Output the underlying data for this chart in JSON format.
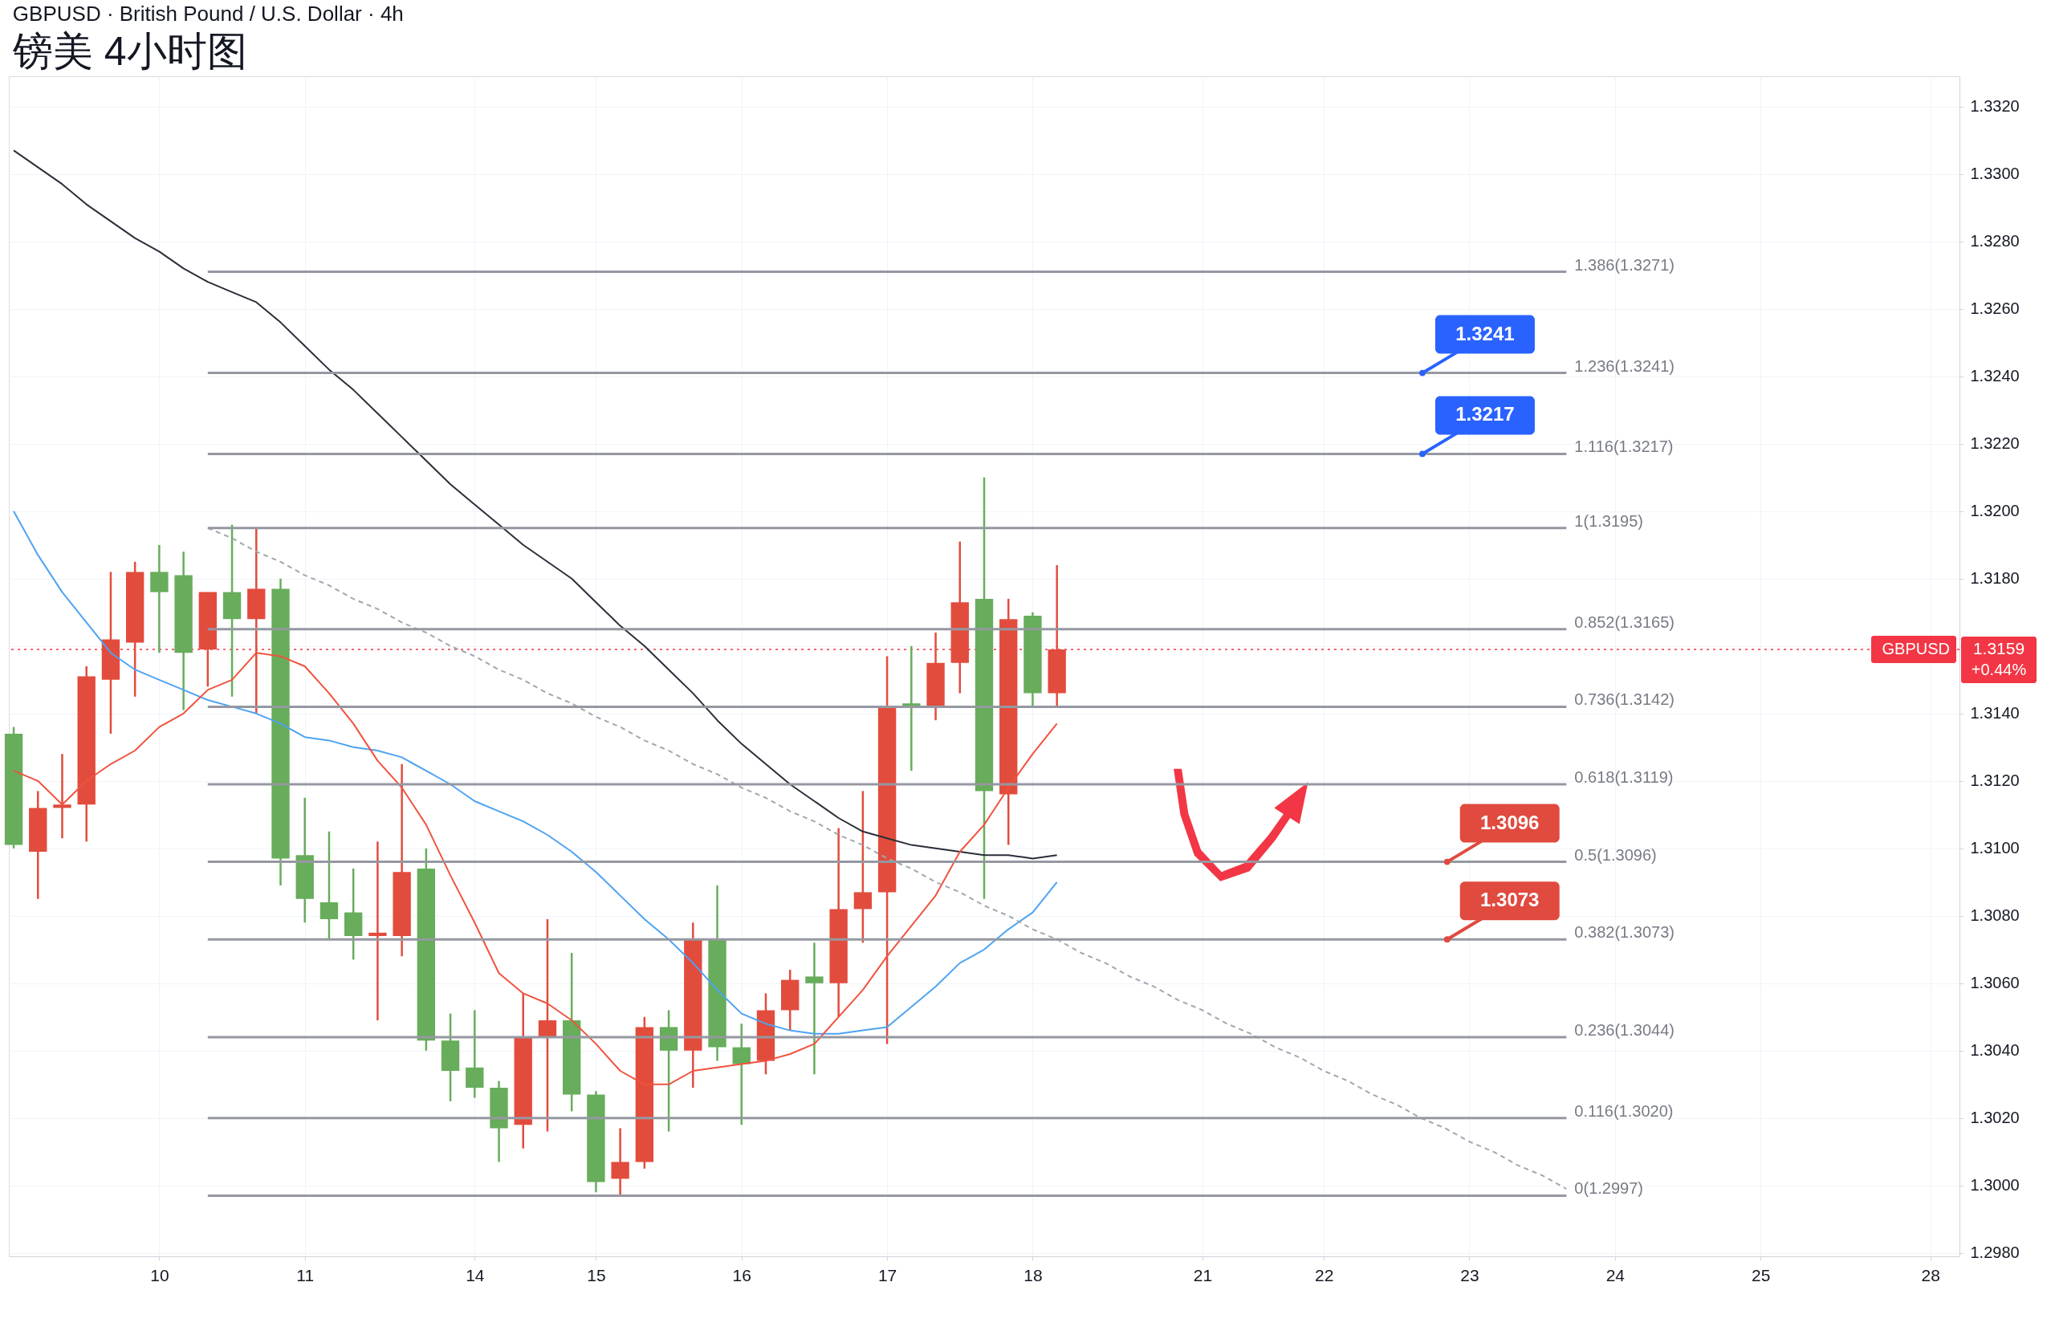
{
  "chart_data": {
    "type": "candlestick",
    "title": "GBPUSD · British Pound / U.S. Dollar · 4h",
    "subtitle": "镑美 4小时图",
    "categories": [
      null,
      null,
      null,
      null,
      null,
      null,
      "10",
      null,
      null,
      null,
      null,
      null,
      "11",
      null,
      null,
      null,
      null,
      null,
      null,
      "14",
      null,
      null,
      null,
      null,
      "15",
      null,
      null,
      null,
      null,
      null,
      "16",
      null,
      null,
      null,
      null,
      null,
      "17",
      null,
      null,
      null,
      null,
      null,
      "18",
      null,
      null,
      null,
      null,
      null,
      null,
      "21",
      null,
      null,
      null,
      null,
      "22",
      null,
      null,
      null,
      null,
      null,
      "23",
      null,
      null,
      null,
      null,
      null,
      "24",
      null,
      null,
      null,
      null,
      null,
      "25",
      null,
      null,
      null,
      null,
      null,
      null,
      "28",
      null
    ],
    "ohlc": [
      [
        1.3134,
        1.3136,
        1.31,
        1.3101
      ],
      [
        1.3099,
        1.3117,
        1.3085,
        1.3112
      ],
      [
        1.3112,
        1.3128,
        1.3103,
        1.3113
      ],
      [
        1.3113,
        1.3154,
        1.3102,
        1.3151
      ],
      [
        1.315,
        1.3182,
        1.3134,
        1.3162
      ],
      [
        1.3161,
        1.3185,
        1.3145,
        1.3182
      ],
      [
        1.3182,
        1.319,
        1.3158,
        1.3176
      ],
      [
        1.3181,
        1.3188,
        1.3141,
        1.3158
      ],
      [
        1.3159,
        1.3176,
        1.3148,
        1.3176
      ],
      [
        1.3176,
        1.3196,
        1.3145,
        1.3168
      ],
      [
        1.3168,
        1.3195,
        1.314,
        1.3177
      ],
      [
        1.3177,
        1.318,
        1.3089,
        1.3097
      ],
      [
        1.3098,
        1.3115,
        1.3078,
        1.3085
      ],
      [
        1.3084,
        1.3105,
        1.3073,
        1.3079
      ],
      [
        1.3081,
        1.3094,
        1.3067,
        1.3074
      ],
      [
        1.3074,
        1.3102,
        1.3049,
        1.3075
      ],
      [
        1.3074,
        1.3125,
        1.3068,
        1.3093
      ],
      [
        1.3094,
        1.31,
        1.304,
        1.3043
      ],
      [
        1.3043,
        1.3051,
        1.3025,
        1.3034
      ],
      [
        1.3035,
        1.3052,
        1.3026,
        1.3029
      ],
      [
        1.3029,
        1.3031,
        1.3007,
        1.3017
      ],
      [
        1.3018,
        1.3057,
        1.3011,
        1.3044
      ],
      [
        1.3044,
        1.3079,
        1.3016,
        1.3049
      ],
      [
        1.3049,
        1.3069,
        1.3022,
        1.3027
      ],
      [
        1.3027,
        1.3028,
        1.2998,
        1.3001
      ],
      [
        1.3002,
        1.3017,
        1.2997,
        1.3007
      ],
      [
        1.3007,
        1.305,
        1.3005,
        1.3047
      ],
      [
        1.3047,
        1.3052,
        1.3016,
        1.304
      ],
      [
        1.304,
        1.3078,
        1.3029,
        1.3073
      ],
      [
        1.3073,
        1.3089,
        1.3037,
        1.3041
      ],
      [
        1.3041,
        1.3048,
        1.3018,
        1.3036
      ],
      [
        1.3037,
        1.3057,
        1.3033,
        1.3052
      ],
      [
        1.3052,
        1.3064,
        1.3046,
        1.3061
      ],
      [
        1.3062,
        1.3072,
        1.3033,
        1.306
      ],
      [
        1.306,
        1.3106,
        1.305,
        1.3082
      ],
      [
        1.3082,
        1.3117,
        1.3072,
        1.3087
      ],
      [
        1.3087,
        1.3157,
        1.3042,
        1.3142
      ],
      [
        1.3143,
        1.316,
        1.3123,
        1.3142
      ],
      [
        1.3142,
        1.3164,
        1.3138,
        1.3155
      ],
      [
        1.3155,
        1.3191,
        1.3146,
        1.3173
      ],
      [
        1.3174,
        1.321,
        1.3085,
        1.3117
      ],
      [
        1.3116,
        1.3174,
        1.3101,
        1.3168
      ],
      [
        1.3169,
        1.317,
        1.3142,
        1.3146
      ],
      [
        1.3146,
        1.3184,
        1.3142,
        1.3159
      ],
      null,
      null,
      null,
      null,
      null,
      null,
      null,
      null,
      null,
      null,
      null,
      null,
      null,
      null,
      null,
      null,
      null,
      null,
      null,
      null,
      null,
      null,
      null,
      null,
      null,
      null,
      null,
      null,
      null,
      null,
      null,
      null,
      null,
      null,
      null,
      null,
      null
    ],
    "colors": [
      "#67ad5b",
      "#e24c3d",
      "#e24c3d",
      "#e24c3d",
      "#e24c3d",
      "#e24c3d",
      "#67ad5b",
      "#67ad5b",
      "#e24c3d",
      "#67ad5b",
      "#e24c3d",
      "#67ad5b",
      "#67ad5b",
      "#67ad5b",
      "#67ad5b",
      "#e24c3d",
      "#e24c3d",
      "#67ad5b",
      "#67ad5b",
      "#67ad5b",
      "#67ad5b",
      "#e24c3d",
      "#e24c3d",
      "#67ad5b",
      "#67ad5b",
      "#e24c3d",
      "#e24c3d",
      "#67ad5b",
      "#e24c3d",
      "#67ad5b",
      "#67ad5b",
      "#e24c3d",
      "#e24c3d",
      "#67ad5b",
      "#e24c3d",
      "#e24c3d",
      "#e24c3d",
      "#67ad5b",
      "#e24c3d",
      "#e24c3d",
      "#67ad5b",
      "#e24c3d",
      "#67ad5b",
      "#e24c3d",
      null,
      null,
      null,
      null,
      null,
      null,
      null,
      null,
      null,
      null,
      null,
      null,
      null,
      null,
      null,
      null,
      null,
      null,
      null,
      null,
      null,
      null,
      null,
      null,
      null,
      null,
      null,
      null,
      null,
      null,
      null,
      null,
      null,
      null,
      null,
      null,
      null
    ],
    "series": [
      {
        "type": "line",
        "color": "#2a2e39",
        "values": [
          1.3307,
          1.3302,
          1.3297,
          1.3291,
          1.3286,
          1.3281,
          1.3277,
          1.3272,
          1.3268,
          1.3265,
          1.3262,
          1.3256,
          1.3249,
          1.3242,
          1.3236,
          1.3229,
          1.3222,
          1.3215,
          1.3208,
          1.3202,
          1.3196,
          1.319,
          1.3185,
          1.318,
          1.3173,
          1.3166,
          1.316,
          1.3153,
          1.3146,
          1.3138,
          1.3131,
          1.3125,
          1.3119,
          1.3114,
          1.3109,
          1.3105,
          1.3103,
          1.3101,
          1.31,
          1.3099,
          1.3098,
          1.3098,
          1.3097,
          1.3098,
          null,
          null,
          null,
          null,
          null,
          null,
          null,
          null,
          null,
          null,
          null,
          null,
          null,
          null,
          null,
          null,
          null,
          null,
          null,
          null,
          null,
          null,
          null,
          null,
          null,
          null,
          null,
          null,
          null,
          null,
          null,
          null,
          null,
          null,
          null,
          null,
          null
        ]
      },
      {
        "type": "line",
        "color": "#4ea3f2",
        "values": [
          1.32,
          1.3187,
          1.3176,
          1.3167,
          1.3158,
          1.3153,
          1.315,
          1.3147,
          1.3144,
          1.3142,
          1.314,
          1.3137,
          1.3133,
          1.3132,
          1.313,
          1.3129,
          1.3127,
          1.3123,
          1.3119,
          1.3114,
          1.3111,
          1.3108,
          1.3104,
          1.3099,
          1.3093,
          1.3086,
          1.3079,
          1.3073,
          1.3066,
          1.3058,
          1.3051,
          1.3048,
          1.3046,
          1.3045,
          1.3045,
          1.3046,
          1.3047,
          1.3053,
          1.3059,
          1.3066,
          1.307,
          1.3076,
          1.3081,
          1.309,
          null,
          null,
          null,
          null,
          null,
          null,
          null,
          null,
          null,
          null,
          null,
          null,
          null,
          null,
          null,
          null,
          null,
          null,
          null,
          null,
          null,
          null,
          null,
          null,
          null,
          null,
          null,
          null,
          null,
          null,
          null,
          null,
          null,
          null,
          null,
          null,
          null
        ]
      },
      {
        "type": "line",
        "color": "#f0533f",
        "values": [
          1.3123,
          1.312,
          1.3113,
          1.312,
          1.3125,
          1.3129,
          1.3136,
          1.314,
          1.3147,
          1.315,
          1.3158,
          1.3157,
          1.3154,
          1.3146,
          1.3137,
          1.3126,
          1.3118,
          1.3107,
          1.3092,
          1.3078,
          1.3063,
          1.3057,
          1.3054,
          1.3049,
          1.3042,
          1.3034,
          1.303,
          1.303,
          1.3034,
          1.3035,
          1.3036,
          1.3037,
          1.3039,
          1.3042,
          1.305,
          1.3058,
          1.3068,
          1.3077,
          1.3086,
          1.3099,
          1.3107,
          1.3118,
          1.3128,
          1.3137,
          null,
          null,
          null,
          null,
          null,
          null,
          null,
          null,
          null,
          null,
          null,
          null,
          null,
          null,
          null,
          null,
          null,
          null,
          null,
          null,
          null,
          null,
          null,
          null,
          null,
          null,
          null,
          null,
          null,
          null,
          null,
          null,
          null,
          null,
          null,
          null,
          null
        ]
      },
      {
        "type": "line",
        "color": "#a3a6af",
        "line_style": "dashed",
        "values": [
          null,
          null,
          null,
          null,
          null,
          null,
          null,
          null,
          1.3195,
          1.3192,
          1.3188,
          1.3185,
          1.3181,
          1.3178,
          1.3174,
          1.3171,
          1.3167,
          1.3164,
          1.316,
          1.3157,
          1.3153,
          1.315,
          1.3146,
          1.3143,
          1.3139,
          1.3136,
          1.3132,
          1.3129,
          1.3125,
          1.3122,
          1.3118,
          1.3115,
          1.3111,
          1.3108,
          1.3104,
          1.3101,
          1.3097,
          1.3094,
          1.309,
          1.3087,
          1.3083,
          1.308,
          1.3076,
          1.3073,
          1.3069,
          1.3066,
          1.3062,
          1.3059,
          1.3055,
          1.3052,
          1.3048,
          1.3045,
          1.3041,
          1.3038,
          1.3034,
          1.3031,
          1.3027,
          1.3024,
          1.302,
          1.3017,
          1.3013,
          1.301,
          1.3006,
          1.3003,
          1.2999,
          null,
          null,
          null,
          null,
          null,
          null,
          null,
          null,
          null,
          null,
          null,
          null,
          null,
          null,
          null,
          null
        ]
      },
      {
        "type": "line",
        "name": "1.386(1.3271)",
        "color": "#9598a1",
        "values": [
          null,
          null,
          null,
          null,
          null,
          null,
          null,
          null,
          1.3271,
          1.3271,
          1.3271,
          1.3271,
          1.3271,
          1.3271,
          1.3271,
          1.3271,
          1.3271,
          1.3271,
          1.3271,
          1.3271,
          1.3271,
          1.3271,
          1.3271,
          1.3271,
          1.3271,
          1.3271,
          1.3271,
          1.3271,
          1.3271,
          1.3271,
          1.3271,
          1.3271,
          1.3271,
          1.3271,
          1.3271,
          1.3271,
          1.3271,
          1.3271,
          1.3271,
          1.3271,
          1.3271,
          1.3271,
          1.3271,
          1.3271,
          1.3271,
          1.3271,
          1.3271,
          1.3271,
          1.3271,
          1.3271,
          1.3271,
          1.3271,
          1.3271,
          1.3271,
          1.3271,
          1.3271,
          1.3271,
          1.3271,
          1.3271,
          1.3271,
          1.3271,
          1.3271,
          1.3271,
          1.3271,
          1.3271,
          null,
          null,
          null,
          null,
          null,
          null,
          null,
          null,
          null,
          null,
          null,
          null,
          null,
          null,
          null,
          null
        ]
      },
      {
        "type": "line",
        "name": "1.236(1.3241)",
        "color": "#9598a1",
        "values": [
          null,
          null,
          null,
          null,
          null,
          null,
          null,
          null,
          1.3241,
          1.3241,
          1.3241,
          1.3241,
          1.3241,
          1.3241,
          1.3241,
          1.3241,
          1.3241,
          1.3241,
          1.3241,
          1.3241,
          1.3241,
          1.3241,
          1.3241,
          1.3241,
          1.3241,
          1.3241,
          1.3241,
          1.3241,
          1.3241,
          1.3241,
          1.3241,
          1.3241,
          1.3241,
          1.3241,
          1.3241,
          1.3241,
          1.3241,
          1.3241,
          1.3241,
          1.3241,
          1.3241,
          1.3241,
          1.3241,
          1.3241,
          1.3241,
          1.3241,
          1.3241,
          1.3241,
          1.3241,
          1.3241,
          1.3241,
          1.3241,
          1.3241,
          1.3241,
          1.3241,
          1.3241,
          1.3241,
          1.3241,
          1.3241,
          1.3241,
          1.3241,
          1.3241,
          1.3241,
          1.3241,
          1.3241,
          null,
          null,
          null,
          null,
          null,
          null,
          null,
          null,
          null,
          null,
          null,
          null,
          null,
          null,
          null,
          null
        ]
      },
      {
        "type": "line",
        "name": "1.116(1.3217)",
        "color": "#9598a1",
        "values": [
          null,
          null,
          null,
          null,
          null,
          null,
          null,
          null,
          1.3217,
          1.3217,
          1.3217,
          1.3217,
          1.3217,
          1.3217,
          1.3217,
          1.3217,
          1.3217,
          1.3217,
          1.3217,
          1.3217,
          1.3217,
          1.3217,
          1.3217,
          1.3217,
          1.3217,
          1.3217,
          1.3217,
          1.3217,
          1.3217,
          1.3217,
          1.3217,
          1.3217,
          1.3217,
          1.3217,
          1.3217,
          1.3217,
          1.3217,
          1.3217,
          1.3217,
          1.3217,
          1.3217,
          1.3217,
          1.3217,
          1.3217,
          1.3217,
          1.3217,
          1.3217,
          1.3217,
          1.3217,
          1.3217,
          1.3217,
          1.3217,
          1.3217,
          1.3217,
          1.3217,
          1.3217,
          1.3217,
          1.3217,
          1.3217,
          1.3217,
          1.3217,
          1.3217,
          1.3217,
          1.3217,
          1.3217,
          null,
          null,
          null,
          null,
          null,
          null,
          null,
          null,
          null,
          null,
          null,
          null,
          null,
          null,
          null,
          null
        ]
      },
      {
        "type": "line",
        "name": "1(1.3195)",
        "color": "#9598a1",
        "values": [
          null,
          null,
          null,
          null,
          null,
          null,
          null,
          null,
          1.3195,
          1.3195,
          1.3195,
          1.3195,
          1.3195,
          1.3195,
          1.3195,
          1.3195,
          1.3195,
          1.3195,
          1.3195,
          1.3195,
          1.3195,
          1.3195,
          1.3195,
          1.3195,
          1.3195,
          1.3195,
          1.3195,
          1.3195,
          1.3195,
          1.3195,
          1.3195,
          1.3195,
          1.3195,
          1.3195,
          1.3195,
          1.3195,
          1.3195,
          1.3195,
          1.3195,
          1.3195,
          1.3195,
          1.3195,
          1.3195,
          1.3195,
          1.3195,
          1.3195,
          1.3195,
          1.3195,
          1.3195,
          1.3195,
          1.3195,
          1.3195,
          1.3195,
          1.3195,
          1.3195,
          1.3195,
          1.3195,
          1.3195,
          1.3195,
          1.3195,
          1.3195,
          1.3195,
          1.3195,
          1.3195,
          1.3195,
          null,
          null,
          null,
          null,
          null,
          null,
          null,
          null,
          null,
          null,
          null,
          null,
          null,
          null,
          null,
          null
        ]
      },
      {
        "type": "line",
        "name": "0.852(1.3165)",
        "color": "#9598a1",
        "values": [
          null,
          null,
          null,
          null,
          null,
          null,
          null,
          null,
          1.3165,
          1.3165,
          1.3165,
          1.3165,
          1.3165,
          1.3165,
          1.3165,
          1.3165,
          1.3165,
          1.3165,
          1.3165,
          1.3165,
          1.3165,
          1.3165,
          1.3165,
          1.3165,
          1.3165,
          1.3165,
          1.3165,
          1.3165,
          1.3165,
          1.3165,
          1.3165,
          1.3165,
          1.3165,
          1.3165,
          1.3165,
          1.3165,
          1.3165,
          1.3165,
          1.3165,
          1.3165,
          1.3165,
          1.3165,
          1.3165,
          1.3165,
          1.3165,
          1.3165,
          1.3165,
          1.3165,
          1.3165,
          1.3165,
          1.3165,
          1.3165,
          1.3165,
          1.3165,
          1.3165,
          1.3165,
          1.3165,
          1.3165,
          1.3165,
          1.3165,
          1.3165,
          1.3165,
          1.3165,
          1.3165,
          1.3165,
          null,
          null,
          null,
          null,
          null,
          null,
          null,
          null,
          null,
          null,
          null,
          null,
          null,
          null,
          null,
          null
        ]
      },
      {
        "type": "line",
        "name": "0.736(1.3142)",
        "color": "#9598a1",
        "values": [
          null,
          null,
          null,
          null,
          null,
          null,
          null,
          null,
          1.3142,
          1.3142,
          1.3142,
          1.3142,
          1.3142,
          1.3142,
          1.3142,
          1.3142,
          1.3142,
          1.3142,
          1.3142,
          1.3142,
          1.3142,
          1.3142,
          1.3142,
          1.3142,
          1.3142,
          1.3142,
          1.3142,
          1.3142,
          1.3142,
          1.3142,
          1.3142,
          1.3142,
          1.3142,
          1.3142,
          1.3142,
          1.3142,
          1.3142,
          1.3142,
          1.3142,
          1.3142,
          1.3142,
          1.3142,
          1.3142,
          1.3142,
          1.3142,
          1.3142,
          1.3142,
          1.3142,
          1.3142,
          1.3142,
          1.3142,
          1.3142,
          1.3142,
          1.3142,
          1.3142,
          1.3142,
          1.3142,
          1.3142,
          1.3142,
          1.3142,
          1.3142,
          1.3142,
          1.3142,
          1.3142,
          1.3142,
          null,
          null,
          null,
          null,
          null,
          null,
          null,
          null,
          null,
          null,
          null,
          null,
          null,
          null,
          null,
          null
        ]
      },
      {
        "type": "line",
        "name": "0.618(1.3119)",
        "color": "#9598a1",
        "values": [
          null,
          null,
          null,
          null,
          null,
          null,
          null,
          null,
          1.3119,
          1.3119,
          1.3119,
          1.3119,
          1.3119,
          1.3119,
          1.3119,
          1.3119,
          1.3119,
          1.3119,
          1.3119,
          1.3119,
          1.3119,
          1.3119,
          1.3119,
          1.3119,
          1.3119,
          1.3119,
          1.3119,
          1.3119,
          1.3119,
          1.3119,
          1.3119,
          1.3119,
          1.3119,
          1.3119,
          1.3119,
          1.3119,
          1.3119,
          1.3119,
          1.3119,
          1.3119,
          1.3119,
          1.3119,
          1.3119,
          1.3119,
          1.3119,
          1.3119,
          1.3119,
          1.3119,
          1.3119,
          1.3119,
          1.3119,
          1.3119,
          1.3119,
          1.3119,
          1.3119,
          1.3119,
          1.3119,
          1.3119,
          1.3119,
          1.3119,
          1.3119,
          1.3119,
          1.3119,
          1.3119,
          1.3119,
          null,
          null,
          null,
          null,
          null,
          null,
          null,
          null,
          null,
          null,
          null,
          null,
          null,
          null,
          null,
          null
        ]
      },
      {
        "type": "line",
        "name": "0.5(1.3096)",
        "color": "#9598a1",
        "values": [
          null,
          null,
          null,
          null,
          null,
          null,
          null,
          null,
          1.3096,
          1.3096,
          1.3096,
          1.3096,
          1.3096,
          1.3096,
          1.3096,
          1.3096,
          1.3096,
          1.3096,
          1.3096,
          1.3096,
          1.3096,
          1.3096,
          1.3096,
          1.3096,
          1.3096,
          1.3096,
          1.3096,
          1.3096,
          1.3096,
          1.3096,
          1.3096,
          1.3096,
          1.3096,
          1.3096,
          1.3096,
          1.3096,
          1.3096,
          1.3096,
          1.3096,
          1.3096,
          1.3096,
          1.3096,
          1.3096,
          1.3096,
          1.3096,
          1.3096,
          1.3096,
          1.3096,
          1.3096,
          1.3096,
          1.3096,
          1.3096,
          1.3096,
          1.3096,
          1.3096,
          1.3096,
          1.3096,
          1.3096,
          1.3096,
          1.3096,
          1.3096,
          1.3096,
          1.3096,
          1.3096,
          1.3096,
          null,
          null,
          null,
          null,
          null,
          null,
          null,
          null,
          null,
          null,
          null,
          null,
          null,
          null,
          null,
          null
        ]
      },
      {
        "type": "line",
        "name": "0.382(1.3073)",
        "color": "#9598a1",
        "values": [
          null,
          null,
          null,
          null,
          null,
          null,
          null,
          null,
          1.3073,
          1.3073,
          1.3073,
          1.3073,
          1.3073,
          1.3073,
          1.3073,
          1.3073,
          1.3073,
          1.3073,
          1.3073,
          1.3073,
          1.3073,
          1.3073,
          1.3073,
          1.3073,
          1.3073,
          1.3073,
          1.3073,
          1.3073,
          1.3073,
          1.3073,
          1.3073,
          1.3073,
          1.3073,
          1.3073,
          1.3073,
          1.3073,
          1.3073,
          1.3073,
          1.3073,
          1.3073,
          1.3073,
          1.3073,
          1.3073,
          1.3073,
          1.3073,
          1.3073,
          1.3073,
          1.3073,
          1.3073,
          1.3073,
          1.3073,
          1.3073,
          1.3073,
          1.3073,
          1.3073,
          1.3073,
          1.3073,
          1.3073,
          1.3073,
          1.3073,
          1.3073,
          1.3073,
          1.3073,
          1.3073,
          1.3073,
          null,
          null,
          null,
          null,
          null,
          null,
          null,
          null,
          null,
          null,
          null,
          null,
          null,
          null,
          null,
          null
        ]
      },
      {
        "type": "line",
        "name": "0.236(1.3044)",
        "color": "#9598a1",
        "values": [
          null,
          null,
          null,
          null,
          null,
          null,
          null,
          null,
          1.3044,
          1.3044,
          1.3044,
          1.3044,
          1.3044,
          1.3044,
          1.3044,
          1.3044,
          1.3044,
          1.3044,
          1.3044,
          1.3044,
          1.3044,
          1.3044,
          1.3044,
          1.3044,
          1.3044,
          1.3044,
          1.3044,
          1.3044,
          1.3044,
          1.3044,
          1.3044,
          1.3044,
          1.3044,
          1.3044,
          1.3044,
          1.3044,
          1.3044,
          1.3044,
          1.3044,
          1.3044,
          1.3044,
          1.3044,
          1.3044,
          1.3044,
          1.3044,
          1.3044,
          1.3044,
          1.3044,
          1.3044,
          1.3044,
          1.3044,
          1.3044,
          1.3044,
          1.3044,
          1.3044,
          1.3044,
          1.3044,
          1.3044,
          1.3044,
          1.3044,
          1.3044,
          1.3044,
          1.3044,
          1.3044,
          1.3044,
          null,
          null,
          null,
          null,
          null,
          null,
          null,
          null,
          null,
          null,
          null,
          null,
          null,
          null,
          null,
          null
        ]
      },
      {
        "type": "line",
        "name": "0.116(1.3020)",
        "color": "#9598a1",
        "values": [
          null,
          null,
          null,
          null,
          null,
          null,
          null,
          null,
          1.302,
          1.302,
          1.302,
          1.302,
          1.302,
          1.302,
          1.302,
          1.302,
          1.302,
          1.302,
          1.302,
          1.302,
          1.302,
          1.302,
          1.302,
          1.302,
          1.302,
          1.302,
          1.302,
          1.302,
          1.302,
          1.302,
          1.302,
          1.302,
          1.302,
          1.302,
          1.302,
          1.302,
          1.302,
          1.302,
          1.302,
          1.302,
          1.302,
          1.302,
          1.302,
          1.302,
          1.302,
          1.302,
          1.302,
          1.302,
          1.302,
          1.302,
          1.302,
          1.302,
          1.302,
          1.302,
          1.302,
          1.302,
          1.302,
          1.302,
          1.302,
          1.302,
          1.302,
          1.302,
          1.302,
          1.302,
          1.302,
          null,
          null,
          null,
          null,
          null,
          null,
          null,
          null,
          null,
          null,
          null,
          null,
          null,
          null,
          null,
          null
        ]
      },
      {
        "type": "line",
        "name": "0(1.2997)",
        "color": "#9598a1",
        "values": [
          null,
          null,
          null,
          null,
          null,
          null,
          null,
          null,
          1.2997,
          1.2997,
          1.2997,
          1.2997,
          1.2997,
          1.2997,
          1.2997,
          1.2997,
          1.2997,
          1.2997,
          1.2997,
          1.2997,
          1.2997,
          1.2997,
          1.2997,
          1.2997,
          1.2997,
          1.2997,
          1.2997,
          1.2997,
          1.2997,
          1.2997,
          1.2997,
          1.2997,
          1.2997,
          1.2997,
          1.2997,
          1.2997,
          1.2997,
          1.2997,
          1.2997,
          1.2997,
          1.2997,
          1.2997,
          1.2997,
          1.2997,
          1.2997,
          1.2997,
          1.2997,
          1.2997,
          1.2997,
          1.2997,
          1.2997,
          1.2997,
          1.2997,
          1.2997,
          1.2997,
          1.2997,
          1.2997,
          1.2997,
          1.2997,
          1.2997,
          1.2997,
          1.2997,
          1.2997,
          1.2997,
          1.2997,
          null,
          null,
          null,
          null,
          null,
          null,
          null,
          null,
          null,
          null,
          null,
          null,
          null,
          null,
          null,
          null
        ]
      }
    ],
    "ref_lines": [
      {
        "axis": "y",
        "value": 1.3159,
        "label": "GBPUSD",
        "color": "#f23645",
        "line_style": "dotted"
      }
    ],
    "annotations": [
      {
        "text": "1.3241",
        "y": 1.3241
      },
      {
        "text": "1.3217",
        "y": 1.3217
      },
      {
        "text": "1.3096",
        "y": 1.3096
      },
      {
        "text": "1.3073",
        "y": 1.3073
      },
      "1.3159",
      "+0.44%"
    ],
    "ylim": [
      1.2979,
      1.3329
    ],
    "yticks": [
      {
        "value": 1.298,
        "label": "1.2980"
      },
      {
        "value": 1.3,
        "label": "1.3000"
      },
      {
        "value": 1.302,
        "label": "1.3020"
      },
      {
        "value": 1.304,
        "label": "1.3040"
      },
      {
        "value": 1.306,
        "label": "1.3060"
      },
      {
        "value": 1.308,
        "label": "1.3080"
      },
      {
        "value": 1.31,
        "label": "1.3100"
      },
      {
        "value": 1.312,
        "label": "1.3120"
      },
      {
        "value": 1.314,
        "label": "1.3140"
      },
      {
        "value": 1.316,
        "label": null
      },
      {
        "value": 1.318,
        "label": "1.3180"
      },
      {
        "value": 1.32,
        "label": "1.3200"
      },
      {
        "value": 1.322,
        "label": "1.3220"
      },
      {
        "value": 1.324,
        "label": "1.3240"
      },
      {
        "value": 1.326,
        "label": "1.3260"
      },
      {
        "value": 1.328,
        "label": "1.3280"
      },
      {
        "value": 1.33,
        "label": "1.3300"
      },
      {
        "value": 1.332,
        "label": "1.3320"
      }
    ],
    "grid": true
  }
}
